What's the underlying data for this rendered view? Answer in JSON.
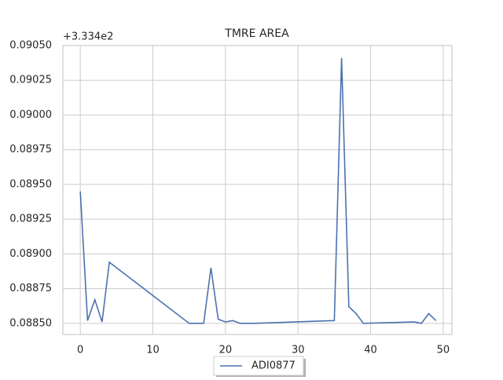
{
  "chart_data": {
    "type": "line",
    "title": "TMRE AREA",
    "offset_text": "+3.334e2",
    "x": [
      0,
      1,
      2,
      3,
      4,
      15,
      17,
      18,
      19,
      20,
      21,
      22,
      24,
      35,
      36,
      37,
      38,
      39,
      46,
      47,
      48,
      49
    ],
    "series": [
      {
        "name": "ADI0877",
        "color": "#4c72b0",
        "values": [
          0.08945,
          0.08852,
          0.08867,
          0.08851,
          0.08894,
          0.0885,
          0.0885,
          0.0889,
          0.08853,
          0.08851,
          0.08852,
          0.0885,
          0.0885,
          0.08852,
          0.09041,
          0.08862,
          0.08857,
          0.0885,
          0.08851,
          0.0885,
          0.08857,
          0.08852
        ]
      }
    ],
    "xlim": [
      -2.4,
      51.2
    ],
    "xticks": [
      0,
      10,
      20,
      30,
      40,
      50
    ],
    "ylim": [
      0.08842,
      0.0905
    ],
    "yticks": [
      {
        "value": 0.0885,
        "label": "0.08850"
      },
      {
        "value": 0.08875,
        "label": "0.08875"
      },
      {
        "value": 0.089,
        "label": "0.08900"
      },
      {
        "value": 0.08925,
        "label": "0.08925"
      },
      {
        "value": 0.0895,
        "label": "0.08950"
      },
      {
        "value": 0.08975,
        "label": "0.08975"
      },
      {
        "value": 0.09,
        "label": "0.09000"
      },
      {
        "value": 0.09025,
        "label": "0.09025"
      },
      {
        "value": 0.0905,
        "label": "0.09050"
      }
    ],
    "grid": true,
    "legend_position": "bottom"
  }
}
